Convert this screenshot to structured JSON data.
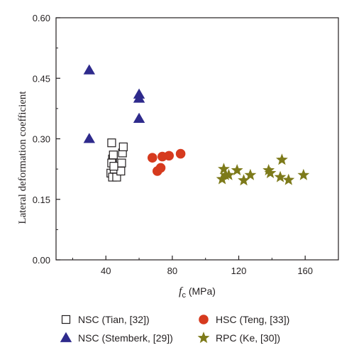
{
  "chart_data": {
    "type": "scatter",
    "xlabel_symbol": "f",
    "xlabel_subscript": "c",
    "xlabel_unit": " (MPa)",
    "ylabel": "Lateral deformation coefficient",
    "xlim": [
      10,
      180
    ],
    "ylim": [
      0.0,
      0.6
    ],
    "xticks": [
      40,
      80,
      120,
      160
    ],
    "xtick_labels": [
      "40",
      "80",
      "120",
      "160"
    ],
    "yticks": [
      0.0,
      0.15,
      0.3,
      0.45,
      0.6
    ],
    "ytick_labels": [
      "0.00",
      "0.15",
      "0.30",
      "0.45",
      "0.60"
    ],
    "grid": false,
    "legend_placement": "bottom",
    "series": [
      {
        "name": "NSC (Tian, [32])",
        "marker": "open-square",
        "color": "#231f20",
        "points": [
          [
            43.5,
            0.29
          ],
          [
            44.0,
            0.25
          ],
          [
            44.5,
            0.26
          ],
          [
            43.0,
            0.215
          ],
          [
            44.0,
            0.205
          ],
          [
            45.0,
            0.225
          ],
          [
            46.5,
            0.205
          ],
          [
            49.0,
            0.22
          ],
          [
            49.5,
            0.24
          ],
          [
            50.0,
            0.265
          ],
          [
            50.5,
            0.28
          ],
          [
            43.5,
            0.24
          ],
          [
            44.8,
            0.232
          ]
        ]
      },
      {
        "name": "NSC (Stemberk, [29])",
        "marker": "filled-triangle",
        "color": "#2e2a8c",
        "points": [
          [
            30.0,
            0.47
          ],
          [
            30.0,
            0.3
          ],
          [
            60.0,
            0.41
          ],
          [
            60.0,
            0.4
          ],
          [
            60.0,
            0.35
          ]
        ]
      },
      {
        "name": "HSC (Teng, [33])",
        "marker": "filled-circle",
        "color": "#d63a1e",
        "points": [
          [
            68.0,
            0.253
          ],
          [
            71.0,
            0.22
          ],
          [
            73.0,
            0.228
          ],
          [
            74.0,
            0.256
          ],
          [
            78.0,
            0.258
          ],
          [
            85.0,
            0.263
          ]
        ]
      },
      {
        "name": "RPC (Ke, [30])",
        "marker": "filled-star",
        "color": "#7d7a1a",
        "points": [
          [
            110.0,
            0.2
          ],
          [
            111.0,
            0.225
          ],
          [
            112.0,
            0.21
          ],
          [
            114.0,
            0.21
          ],
          [
            119.0,
            0.222
          ],
          [
            123.0,
            0.197
          ],
          [
            127.0,
            0.21
          ],
          [
            138.0,
            0.222
          ],
          [
            139.0,
            0.215
          ],
          [
            145.0,
            0.205
          ],
          [
            146.0,
            0.248
          ],
          [
            150.0,
            0.198
          ],
          [
            159.0,
            0.21
          ]
        ]
      }
    ]
  }
}
